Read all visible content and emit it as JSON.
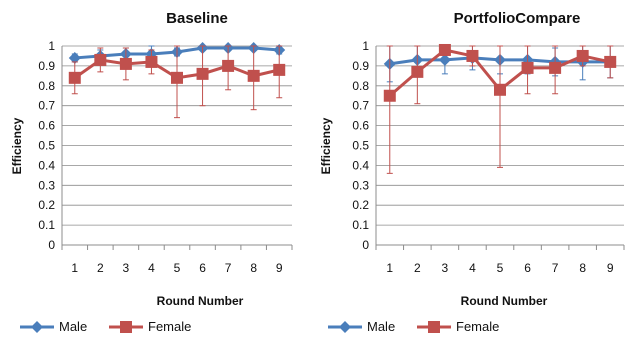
{
  "chart_data": [
    {
      "type": "line",
      "title": "Baseline",
      "xlabel": "Round Number",
      "ylabel": "Efficiency",
      "x": [
        1,
        2,
        3,
        4,
        5,
        6,
        7,
        8,
        9
      ],
      "ylim": [
        0,
        1
      ],
      "yticks": [
        "0",
        "0.1",
        "0.2",
        "0.3",
        "0.4",
        "0.5",
        "0.6",
        "0.7",
        "0.8",
        "0.9",
        "1"
      ],
      "grid": "horizontal",
      "legend": "bottom",
      "series": [
        {
          "name": "Male",
          "color": "#4a7ebb",
          "marker": "diamond",
          "values": [
            0.94,
            0.95,
            0.96,
            0.96,
            0.97,
            0.99,
            0.99,
            0.99,
            0.98
          ],
          "error": [
            0.02,
            0.03,
            0.03,
            0.05,
            0.02,
            0.01,
            0.01,
            0.01,
            0.02
          ]
        },
        {
          "name": "Female",
          "color": "#c0504d",
          "marker": "square",
          "values": [
            0.84,
            0.93,
            0.91,
            0.92,
            0.84,
            0.86,
            0.9,
            0.85,
            0.88
          ],
          "error": [
            0.08,
            0.06,
            0.08,
            0.06,
            0.2,
            0.16,
            0.12,
            0.17,
            0.14
          ]
        }
      ]
    },
    {
      "type": "line",
      "title": "PortfolioCompare",
      "xlabel": "Round Number",
      "ylabel": "Efficiency",
      "x": [
        1,
        2,
        3,
        4,
        5,
        6,
        7,
        8,
        9
      ],
      "ylim": [
        0,
        1
      ],
      "yticks": [
        "0",
        "0.1",
        "0.2",
        "0.3",
        "0.4",
        "0.5",
        "0.6",
        "0.7",
        "0.8",
        "0.9",
        "1"
      ],
      "grid": "horizontal",
      "legend": "bottom",
      "series": [
        {
          "name": "Male",
          "color": "#4a7ebb",
          "marker": "diamond",
          "values": [
            0.91,
            0.93,
            0.93,
            0.94,
            0.93,
            0.93,
            0.92,
            0.92,
            0.92
          ],
          "error": [
            0.09,
            0.07,
            0.07,
            0.06,
            0.07,
            0.07,
            0.07,
            0.09,
            0.08
          ]
        },
        {
          "name": "Female",
          "color": "#c0504d",
          "marker": "square",
          "values": [
            0.75,
            0.87,
            0.98,
            0.95,
            0.78,
            0.89,
            0.89,
            0.95,
            0.92
          ],
          "error": [
            0.39,
            0.16,
            0.02,
            0.05,
            0.39,
            0.13,
            0.13,
            0.05,
            0.08
          ]
        }
      ]
    }
  ]
}
